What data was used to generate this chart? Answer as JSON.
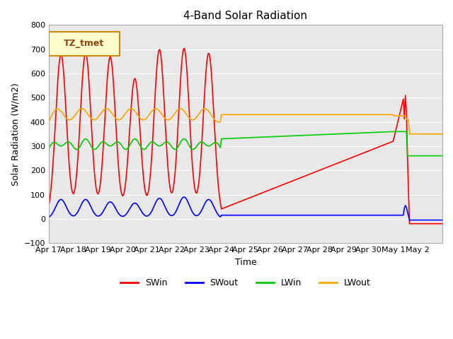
{
  "title": "4-Band Solar Radiation",
  "xlabel": "Time",
  "ylabel": "Solar Radiation (W/m2)",
  "ylim": [
    -100,
    800
  ],
  "yticks": [
    -100,
    0,
    100,
    200,
    300,
    400,
    500,
    600,
    700,
    800
  ],
  "xtick_labels": [
    "Apr 17",
    "Apr 18",
    "Apr 19",
    "Apr 20",
    "Apr 21",
    "Apr 22",
    "Apr 23",
    "Apr 24",
    "Apr 25",
    "Apr 26",
    "Apr 27",
    "Apr 28",
    "Apr 29",
    "Apr 30",
    "May 1",
    "May 2"
  ],
  "legend_title": "TZ_tmet",
  "colors": {
    "SWin": "#ff0000",
    "SWout": "#0000ff",
    "LWin": "#00cc00",
    "LWout": "#ffa500"
  },
  "bg_color": "#e8e8e8",
  "grid_color": "#ffffff"
}
